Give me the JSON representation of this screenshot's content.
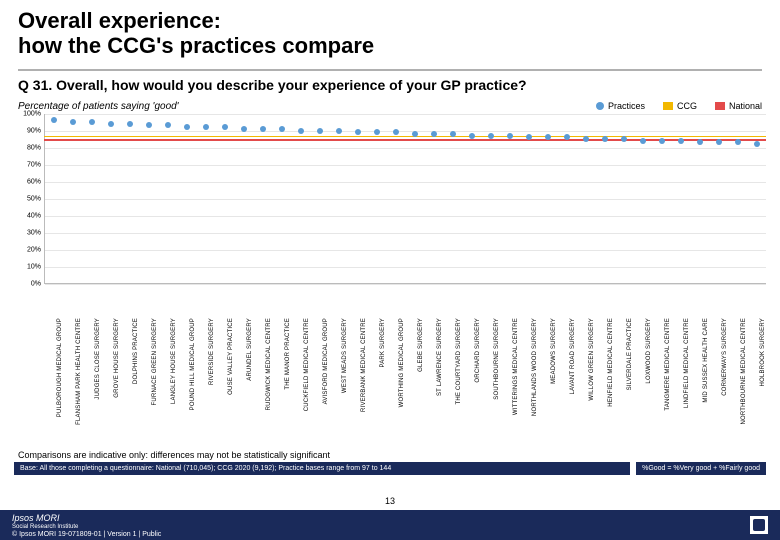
{
  "title_line1": "Overall experience:",
  "title_line2": "how the CCG's practices compare",
  "divider_color": "#b0b0b0",
  "question": "Q 31. Overall, how would you describe your experience of your GP practice?",
  "subtitle": "Percentage of patients saying 'good'",
  "legend": {
    "practices_label": "Practices",
    "ccg_label": "CCG",
    "national_label": "National",
    "practices_color": "#5a9bd5",
    "ccg_color": "#f2b800",
    "national_color": "#e34a4a"
  },
  "chart": {
    "type": "scatter",
    "ylim": [
      0,
      100
    ],
    "ytick_step": 10,
    "ytick_labels": [
      "0%",
      "10%",
      "20%",
      "30%",
      "40%",
      "50%",
      "60%",
      "70%",
      "80%",
      "90%",
      "100%"
    ],
    "grid_color": "#e6e6e6",
    "axis_color": "#bbbbbb",
    "background_color": "#ffffff",
    "dot_color": "#5a9bd5",
    "dot_size": 6,
    "ccg_line_value": 87,
    "national_line_value": 85,
    "practices": [
      {
        "name": "PULBOROUGH MEDICAL GROUP",
        "value": 96
      },
      {
        "name": "FLANSHAM PARK HEALTH CENTRE",
        "value": 95
      },
      {
        "name": "JUDGES CLOSE SURGERY",
        "value": 95
      },
      {
        "name": "GROVE HOUSE SURGERY",
        "value": 94
      },
      {
        "name": "DOLPHINS PRACTICE",
        "value": 94
      },
      {
        "name": "FURNACE GREEN SURGERY",
        "value": 93
      },
      {
        "name": "LANGLEY HOUSE SURGERY",
        "value": 93
      },
      {
        "name": "POUND HILL MEDICAL GROUP",
        "value": 92
      },
      {
        "name": "RIVERSIDE SURGERY",
        "value": 92
      },
      {
        "name": "OUSE VALLEY PRACTICE",
        "value": 92
      },
      {
        "name": "ARUNDEL SURGERY",
        "value": 91
      },
      {
        "name": "RUDGWICK MEDICAL CENTRE",
        "value": 91
      },
      {
        "name": "THE MANOR PRACTICE",
        "value": 91
      },
      {
        "name": "CUCKFIELD MEDICAL CENTRE",
        "value": 90
      },
      {
        "name": "AVISFORD MEDICAL GROUP",
        "value": 90
      },
      {
        "name": "WEST MEADS SURGERY",
        "value": 90
      },
      {
        "name": "RIVERBANK MEDICAL CENTRE",
        "value": 89
      },
      {
        "name": "PARK SURGERY",
        "value": 89
      },
      {
        "name": "WORTHING MEDICAL GROUP",
        "value": 89
      },
      {
        "name": "GLEBE SURGERY",
        "value": 88
      },
      {
        "name": "ST LAWRENCE SURGERY",
        "value": 88
      },
      {
        "name": "THE COURTYARD SURGERY",
        "value": 88
      },
      {
        "name": "ORCHARD SURGERY",
        "value": 87
      },
      {
        "name": "SOUTHBOURNE SURGERY",
        "value": 87
      },
      {
        "name": "WITTERINGS MEDICAL CENTRE",
        "value": 87
      },
      {
        "name": "NORTHLANDS WOOD SURGERY",
        "value": 86
      },
      {
        "name": "MEADOWS SURGERY",
        "value": 86
      },
      {
        "name": "LAVANT ROAD SURGERY",
        "value": 86
      },
      {
        "name": "WILLOW GREEN SURGERY",
        "value": 85
      },
      {
        "name": "HENFIELD MEDICAL CENTRE",
        "value": 85
      },
      {
        "name": "SILVERDALE PRACTICE",
        "value": 85
      },
      {
        "name": "LOXWOOD SURGERY",
        "value": 84
      },
      {
        "name": "TANGMERE MEDICAL CENTRE",
        "value": 84
      },
      {
        "name": "LINDFIELD MEDICAL CENTRE",
        "value": 84
      },
      {
        "name": "MID SUSSEX HEALTH CARE",
        "value": 83
      },
      {
        "name": "CORNERWAYS SURGERY",
        "value": 83
      },
      {
        "name": "NORTHBOURNE MEDICAL CENTRE",
        "value": 83
      },
      {
        "name": "HOLBROOK SURGERY",
        "value": 82
      }
    ]
  },
  "comparison_note": "Comparisons are indicative only: differences may not be statistically significant",
  "base_text": "Base: All those completing a questionnaire: National (710,045); CCG 2020 (9,192); Practice bases range from 97 to 144",
  "good_formula": "%Good = %Very good + %Fairly good",
  "footer": {
    "brand": "Ipsos MORI",
    "brand_sub": "Social Research Institute",
    "copyright": "© Ipsos MORI    19-071809-01 | Version 1 | Public",
    "page_number": "13",
    "bg_color": "#1a2a5a"
  }
}
